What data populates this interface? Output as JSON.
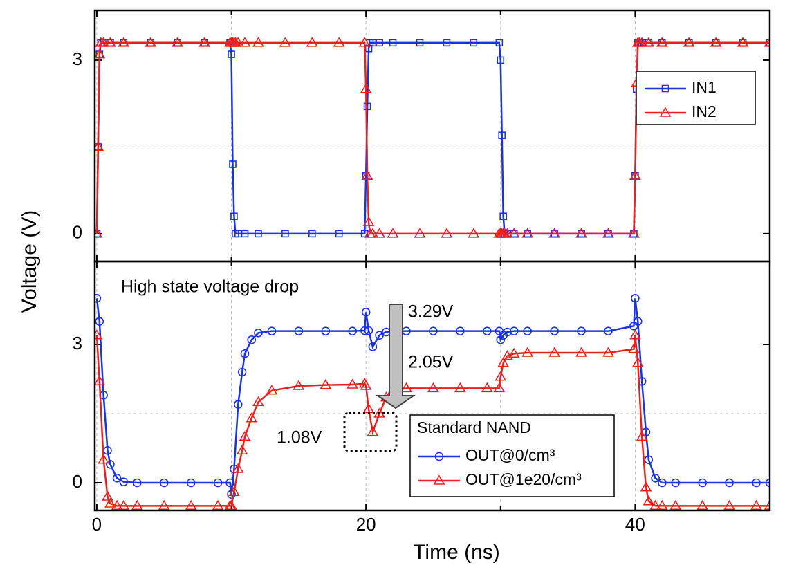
{
  "chart_data": [
    {
      "type": "line",
      "ylim": [
        -0.48,
        3.86
      ],
      "yticks": [
        0,
        3
      ],
      "ygrid": [
        1.5
      ],
      "xlim": [
        -0.15,
        50
      ],
      "xticks": [
        0,
        20,
        40
      ],
      "xminor_ticks": [
        10,
        30
      ],
      "ylabel": "Voltage (V)",
      "legend": "upper right",
      "x": [
        0,
        0.1,
        0.2,
        0.3,
        0.5,
        1,
        2,
        4,
        6,
        8,
        9.9,
        10,
        10.1,
        10.2,
        10.3,
        10.5,
        11,
        12,
        14,
        16,
        18,
        19.9,
        20,
        20.1,
        20.2,
        20.3,
        20.5,
        21,
        22,
        24,
        26,
        28,
        29.9,
        30,
        30.1,
        30.2,
        30.3,
        30.5,
        31,
        32,
        34,
        36,
        38,
        39.9,
        40,
        40.1,
        40.2,
        40.3,
        40.5,
        41,
        42,
        44,
        46,
        48,
        50
      ],
      "series": [
        {
          "name": "IN1",
          "color": "#1a33e0",
          "marker": "square",
          "values": [
            0,
            1.5,
            3.1,
            3.3,
            3.3,
            3.3,
            3.3,
            3.3,
            3.3,
            3.3,
            3.3,
            3.1,
            1.2,
            0.3,
            0,
            0,
            0,
            0,
            0,
            0,
            0,
            0,
            1.0,
            2.2,
            3.2,
            3.3,
            3.3,
            3.3,
            3.3,
            3.3,
            3.3,
            3.3,
            3.3,
            3.0,
            1.7,
            0.3,
            0,
            0,
            0,
            0,
            0,
            0,
            0,
            0,
            1.0,
            2.5,
            3.3,
            3.3,
            3.3,
            3.3,
            3.3,
            3.3,
            3.3,
            3.3,
            3.3
          ]
        },
        {
          "name": "IN2",
          "color": "#e8211f",
          "marker": "triangle",
          "values": [
            0,
            1.5,
            3.1,
            3.3,
            3.3,
            3.3,
            3.3,
            3.3,
            3.3,
            3.3,
            3.3,
            3.3,
            3.3,
            3.3,
            3.3,
            3.3,
            3.3,
            3.3,
            3.3,
            3.3,
            3.3,
            3.3,
            2.5,
            1.0,
            0.2,
            0,
            0,
            0,
            0,
            0,
            0,
            0,
            0,
            0,
            0,
            0,
            0,
            0,
            0,
            0,
            0,
            0,
            0,
            0,
            1.0,
            2.6,
            3.3,
            3.3,
            3.3,
            3.3,
            3.3,
            3.3,
            3.3,
            3.3,
            3.3
          ]
        }
      ]
    },
    {
      "type": "line",
      "ylim": [
        -0.6,
        4.8
      ],
      "yticks": [
        0,
        3
      ],
      "ygrid": [
        1.5
      ],
      "xlim": [
        -0.15,
        50
      ],
      "xticks": [
        0,
        20,
        40
      ],
      "xminor_ticks": [
        10,
        30
      ],
      "xlabel": "Time (ns)",
      "legend_title": "Standard NAND",
      "legend": "lower center",
      "annotations": [
        "High state voltage drop",
        "3.29V",
        "2.05V",
        "1.08V"
      ],
      "x": [
        0,
        0.2,
        0.5,
        0.8,
        1,
        1.5,
        2,
        3,
        5,
        7,
        9,
        9.9,
        10,
        10.2,
        10.5,
        10.8,
        11,
        11.5,
        12,
        13,
        15,
        17,
        19,
        19.9,
        20,
        20.2,
        20.5,
        21,
        21.5,
        22,
        23,
        25,
        27,
        29,
        29.9,
        30,
        30.2,
        30.5,
        31,
        32,
        34,
        36,
        38,
        39.9,
        40,
        40.2,
        40.5,
        40.8,
        41,
        41.5,
        42,
        43,
        45,
        47,
        49,
        50
      ],
      "series": [
        {
          "name": "OUT@0/cm³",
          "color": "#1a33e0",
          "marker": "circle",
          "values": [
            4.0,
            3.5,
            1.9,
            0.7,
            0.4,
            0.1,
            0.02,
            0,
            0,
            0,
            0,
            0,
            -0.25,
            0.3,
            1.7,
            2.4,
            2.8,
            3.1,
            3.25,
            3.29,
            3.29,
            3.29,
            3.29,
            3.3,
            3.7,
            3.3,
            2.95,
            3.2,
            3.27,
            3.29,
            3.29,
            3.29,
            3.29,
            3.29,
            3.29,
            3.1,
            3.2,
            3.27,
            3.29,
            3.29,
            3.29,
            3.29,
            3.29,
            3.4,
            4.0,
            3.5,
            2.2,
            1.1,
            0.5,
            0.1,
            0,
            0,
            0,
            0,
            0,
            0
          ]
        },
        {
          "name": "OUT@1e20/cm³",
          "color": "#e8211f",
          "marker": "triangle",
          "values": [
            3.2,
            2.2,
            0.5,
            -0.3,
            -0.45,
            -0.5,
            -0.5,
            -0.5,
            -0.5,
            -0.5,
            -0.5,
            -0.5,
            -0.5,
            -0.2,
            0.3,
            0.7,
            1.0,
            1.4,
            1.75,
            2.0,
            2.1,
            2.12,
            2.13,
            2.15,
            2.1,
            1.6,
            1.1,
            1.5,
            1.85,
            2.0,
            2.05,
            2.05,
            2.05,
            2.05,
            2.05,
            2.3,
            2.6,
            2.75,
            2.8,
            2.82,
            2.82,
            2.82,
            2.82,
            2.9,
            3.2,
            2.6,
            1.0,
            -0.1,
            -0.4,
            -0.5,
            -0.5,
            -0.5,
            -0.5,
            -0.5,
            -0.5,
            -0.5
          ]
        }
      ]
    }
  ]
}
